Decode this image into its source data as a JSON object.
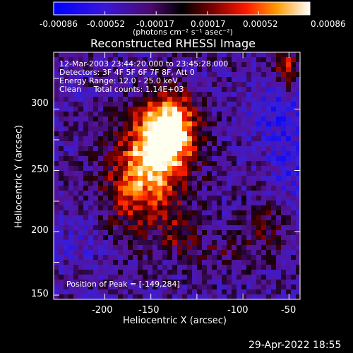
{
  "colorbar": {
    "ticks": [
      "-0.00086",
      "-0.00052",
      "-0.00017",
      "0.00017",
      "0.00052",
      "0.00086"
    ],
    "units": "(photons cm⁻² s⁻¹ asec⁻²)"
  },
  "plot": {
    "title": "Reconstructed RHESSI Image",
    "info_lines": [
      "12-Mar-2003 23:44:20.000 to 23:45:28.000",
      "Detectors: 3F 4F 5F 6F 7F 8F, Att 0",
      "Energy Range: 12.0 - 25.0 keV",
      "Clean     Total counts: 1.14E+03"
    ],
    "peak_text": "Position of Peak = [-149,284]",
    "xlabel": "Heliocentric X (arcsec)",
    "ylabel": "Heliocentric Y (arcsec)",
    "xticks": [
      "-200",
      "-150",
      "-100",
      "-50"
    ],
    "yticks": [
      "150",
      "200",
      "250",
      "300"
    ]
  },
  "footer": {
    "date": "29-Apr-2022 18:55"
  }
}
